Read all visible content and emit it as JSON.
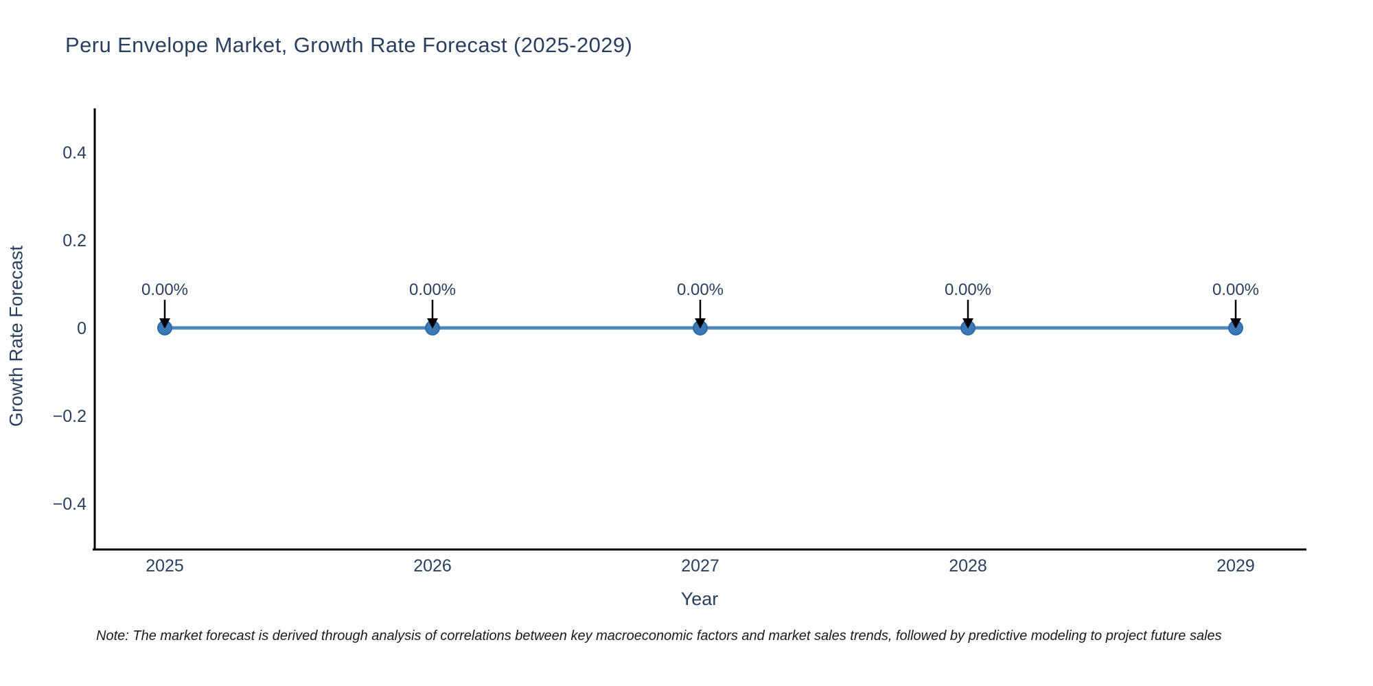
{
  "chart_data": {
    "type": "line",
    "title": "Peru Envelope Market, Growth Rate Forecast (2025-2029)",
    "xlabel": "Year",
    "ylabel": "Growth Rate Forecast",
    "categories": [
      2025,
      2026,
      2027,
      2028,
      2029
    ],
    "series": [
      {
        "name": "Growth Rate Forecast",
        "values": [
          0,
          0,
          0,
          0,
          0
        ]
      }
    ],
    "point_labels": [
      "0.00%",
      "0.00%",
      "0.00%",
      "0.00%",
      "0.00%"
    ],
    "xtick_labels": [
      "2025",
      "2026",
      "2027",
      "2028",
      "2029"
    ],
    "yticks": [
      0.4,
      0.2,
      0,
      -0.2,
      -0.4
    ],
    "ytick_labels": [
      "0.4",
      "0.2",
      "0",
      "−0.2",
      "−0.4"
    ],
    "ylim": [
      -0.5,
      0.5
    ],
    "grid": false,
    "legend": "none",
    "colors": {
      "line": "#4e86b8",
      "marker_fill": "#3a78b6",
      "marker_edge": "#2e6aa5",
      "axis_line": "#000000",
      "text": "#2a3f5f",
      "annotation_arrow": "#000000"
    }
  },
  "note": {
    "text": "Note: The market forecast is derived through analysis of correlations between key macroeconomic factors and market sales trends, followed by predictive modeling to project future sales"
  }
}
